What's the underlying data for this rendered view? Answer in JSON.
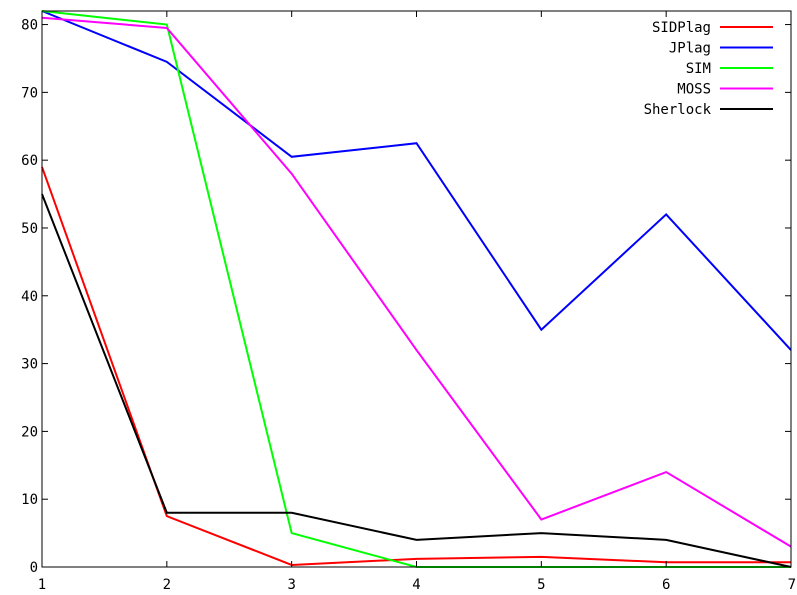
{
  "chart_data": {
    "type": "line",
    "title": "",
    "xlabel": "",
    "ylabel": "",
    "xlim": [
      1,
      7
    ],
    "ylim": [
      0,
      82
    ],
    "xticks": [
      1,
      2,
      3,
      4,
      5,
      6,
      7
    ],
    "yticks": [
      0,
      10,
      20,
      30,
      40,
      50,
      60,
      70,
      80
    ],
    "grid": false,
    "legend_position": "top-right",
    "x": [
      1,
      2,
      3,
      4,
      5,
      6,
      7
    ],
    "series": [
      {
        "name": "SIDPlag",
        "color": "#ff0000",
        "values": [
          59,
          7.5,
          0.3,
          1.2,
          1.5,
          0.7,
          0.7
        ]
      },
      {
        "name": "JPlag",
        "color": "#0000ff",
        "values": [
          82,
          74.5,
          60.5,
          62.5,
          35,
          52,
          32
        ]
      },
      {
        "name": "SIM",
        "color": "#00ff00",
        "values": [
          82,
          80,
          5,
          0,
          0,
          0,
          0
        ]
      },
      {
        "name": "MOSS",
        "color": "#ff00ff",
        "values": [
          81,
          79.5,
          58,
          32,
          7,
          14,
          3
        ]
      },
      {
        "name": "Sherlock",
        "color": "#000000",
        "values": [
          55,
          8,
          8,
          4,
          5,
          4,
          0
        ]
      }
    ]
  }
}
